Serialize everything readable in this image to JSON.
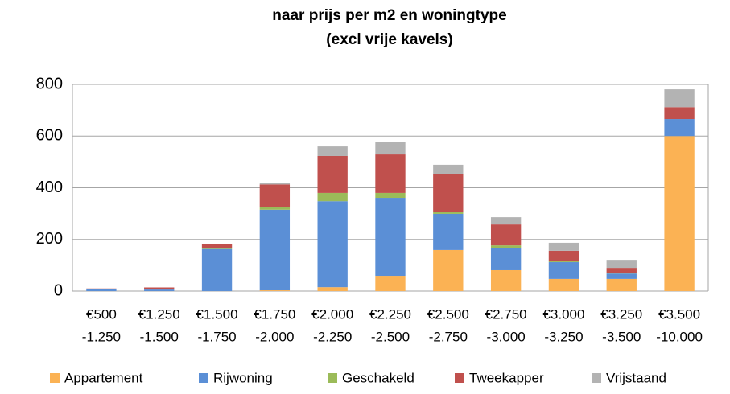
{
  "chart_data": {
    "type": "stacked_bar",
    "title": "naar prijs per m2 en woningtype",
    "subtitle": "(excl vrije kavels)",
    "categories": [
      [
        "€500",
        "-1.250"
      ],
      [
        "€1.250",
        "-1.500"
      ],
      [
        "€1.500",
        "-1.750"
      ],
      [
        "€1.750",
        "-2.000"
      ],
      [
        "€2.000",
        "-2.250"
      ],
      [
        "€2.250",
        "-2.500"
      ],
      [
        "€2.500",
        "-2.750"
      ],
      [
        "€2.750",
        "-3.000"
      ],
      [
        "€3.000",
        "-3.250"
      ],
      [
        "€3.250",
        "-3.500"
      ],
      [
        "€3.500",
        "-10.000"
      ]
    ],
    "series": [
      {
        "name": "Appartement",
        "color": "#fbb254",
        "values": [
          0,
          0,
          0,
          3,
          15,
          59,
          159,
          81,
          47,
          47,
          600
        ]
      },
      {
        "name": "Rijwoning",
        "color": "#5b8fd6",
        "values": [
          8,
          6,
          163,
          312,
          333,
          302,
          140,
          87,
          65,
          21,
          66
        ]
      },
      {
        "name": "Geschakeld",
        "color": "#9bbb59",
        "values": [
          0,
          0,
          2,
          10,
          32,
          19,
          6,
          9,
          3,
          3,
          0
        ]
      },
      {
        "name": "Tweekapper",
        "color": "#c0504d",
        "values": [
          2,
          8,
          18,
          88,
          143,
          149,
          149,
          81,
          41,
          19,
          46
        ]
      },
      {
        "name": "Vrijstaand",
        "color": "#b3b3b3",
        "values": [
          0,
          0,
          0,
          6,
          37,
          47,
          35,
          28,
          31,
          31,
          69
        ]
      }
    ],
    "ylim": [
      0,
      800
    ],
    "yticks": [
      0,
      200,
      400,
      600,
      800
    ],
    "grid": true,
    "legend": "bottom"
  }
}
